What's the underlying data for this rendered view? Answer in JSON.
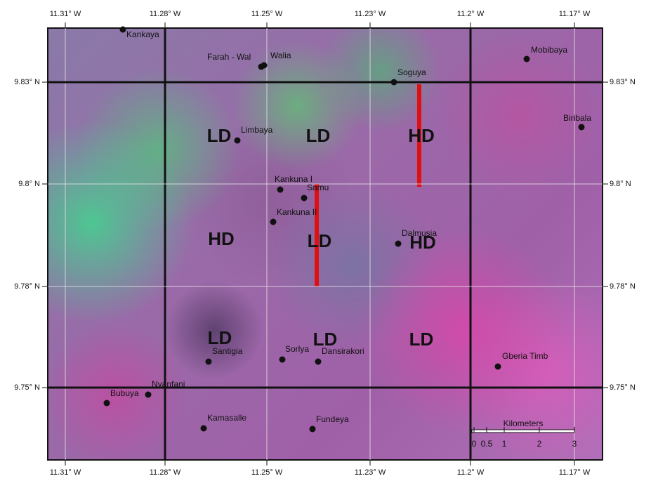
{
  "grid": {
    "longitudes": [
      "11.31° W",
      "11.28° W",
      "11.25° W",
      "11.23° W",
      "11.2° W",
      "11.17° W"
    ],
    "latitudes": [
      "9.83° N",
      "9.8° N",
      "9.78° N",
      "9.75° N"
    ]
  },
  "places": [
    "Kankaya",
    "Farah - Wal",
    "Walia",
    "Mobibaya",
    "Soguya",
    "Biribala",
    "Limbaya",
    "Kankuna I",
    "Samu",
    "Kankuna II",
    "Dalmusia",
    "Santigia",
    "Sorlya",
    "Dansirakori",
    "Gberia Timb",
    "Bubuya",
    "Nyanfani",
    "Kamasalle",
    "Fundeya"
  ],
  "zones": [
    "LD",
    "LD",
    "HD",
    "HD",
    "LD",
    "HD",
    "LD",
    "LD",
    "LD"
  ],
  "scale": {
    "title": "Kilometers",
    "ticks": [
      "0",
      "0.5",
      "1",
      "2",
      "3"
    ]
  }
}
